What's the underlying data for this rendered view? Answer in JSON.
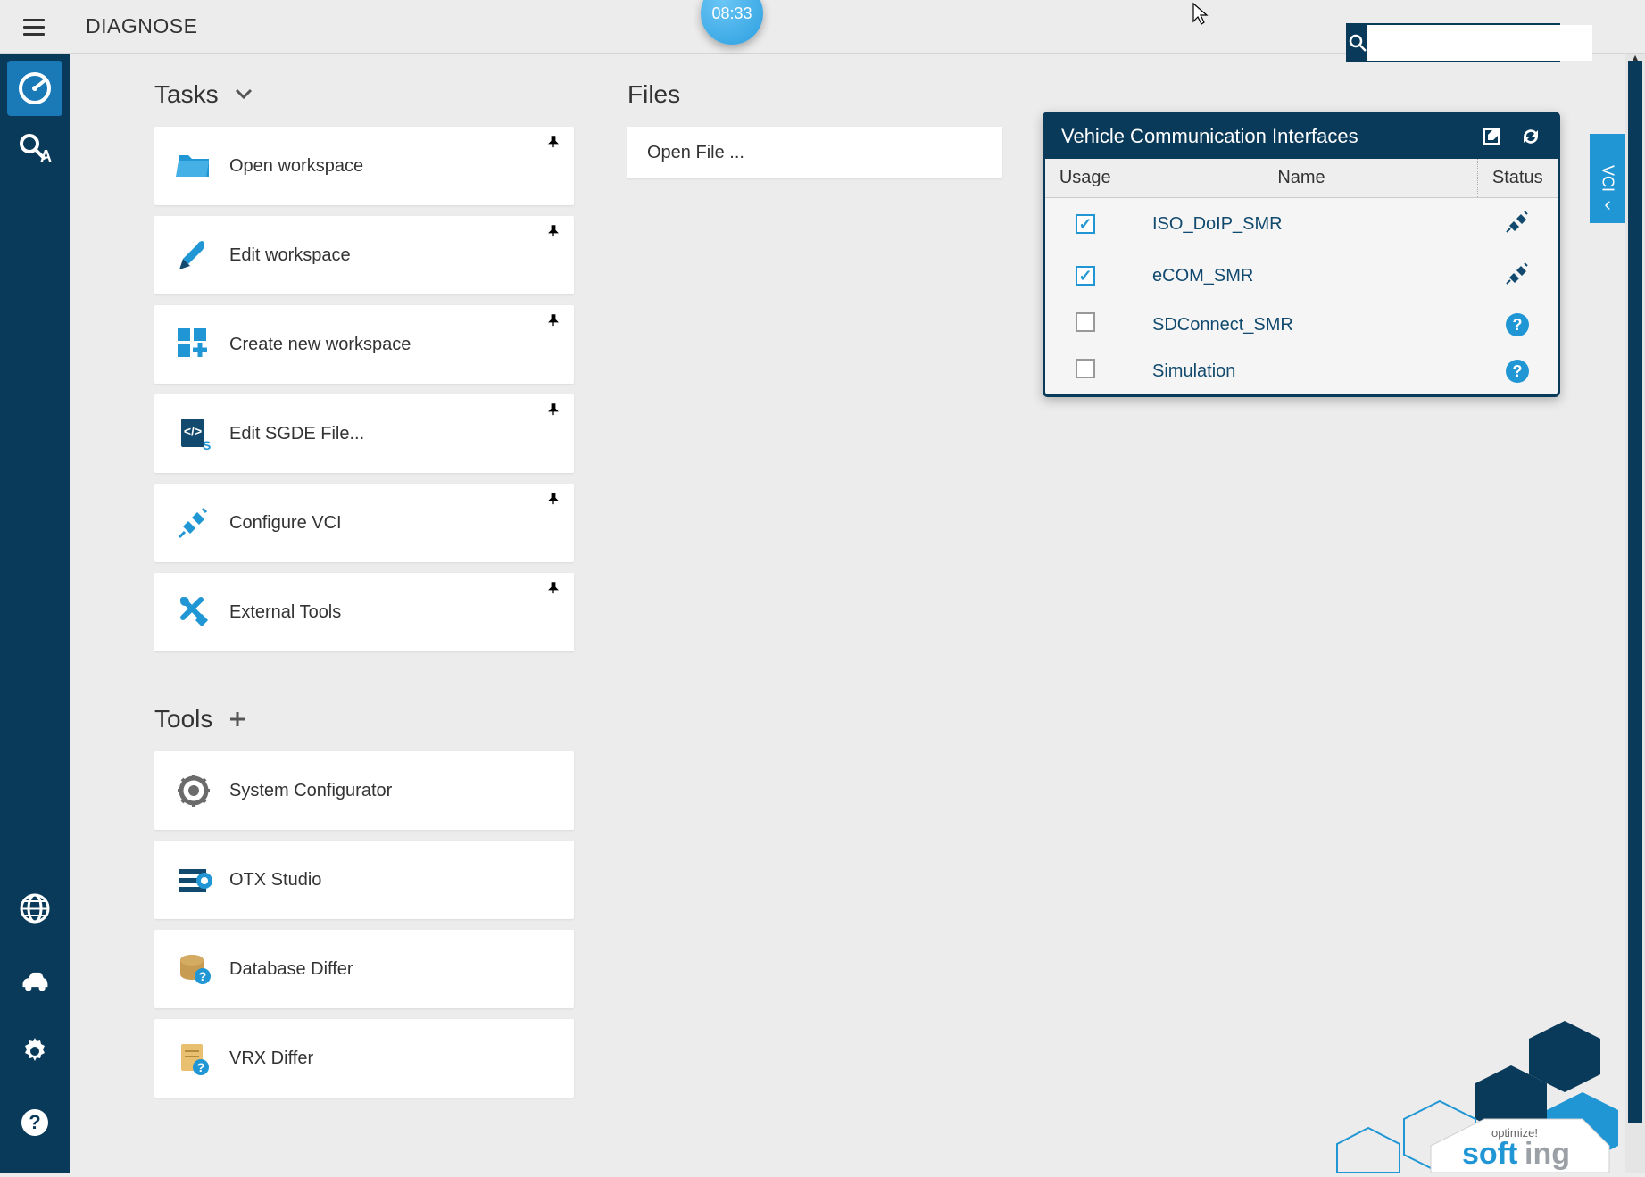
{
  "header": {
    "app_title": "DIAGNOSE",
    "time_bubble": "08:33"
  },
  "search": {
    "placeholder": ""
  },
  "left_rail": {
    "top_items": [
      "gauge",
      "inspect"
    ],
    "bottom_items": [
      "globe",
      "car",
      "gear",
      "help"
    ]
  },
  "tasks": {
    "section_label": "Tasks",
    "items": [
      {
        "label": "Open workspace",
        "icon": "folder",
        "icon_color": "#2196d4"
      },
      {
        "label": "Edit workspace",
        "icon": "brush",
        "icon_color": "#2196d4"
      },
      {
        "label": "Create new workspace",
        "icon": "grid-plus",
        "icon_color": "#2196d4"
      },
      {
        "label": "Edit SGDE File...",
        "icon": "code-file",
        "icon_color": "#114a6e"
      },
      {
        "label": "Configure VCI",
        "icon": "plug",
        "icon_color": "#2196d4"
      },
      {
        "label": "External Tools",
        "icon": "wrench-driver",
        "icon_color": "#2196d4"
      }
    ]
  },
  "tools": {
    "section_label": "Tools",
    "items": [
      {
        "label": "System Configurator",
        "icon": "cog",
        "icon_color": "#6b6b6b"
      },
      {
        "label": "OTX Studio",
        "icon": "otx",
        "icon_color": "#114a6e"
      },
      {
        "label": "Database Differ",
        "icon": "db-help",
        "icon_color": "#b58b3e"
      },
      {
        "label": "VRX Differ",
        "icon": "doc-help",
        "icon_color": "#b58b3e"
      }
    ]
  },
  "files": {
    "section_label": "Files",
    "open_file_label": "Open File ..."
  },
  "vci_tab_label": "VCI",
  "vci_panel": {
    "title": "Vehicle Communication Interfaces",
    "columns": {
      "usage": "Usage",
      "name": "Name",
      "status": "Status"
    },
    "rows": [
      {
        "usage": true,
        "name": "ISO_DoIP_SMR",
        "status": "connected"
      },
      {
        "usage": true,
        "name": "eCOM_SMR",
        "status": "connected"
      },
      {
        "usage": false,
        "name": "SDConnect_SMR",
        "status": "help"
      },
      {
        "usage": false,
        "name": "Simulation",
        "status": "help"
      }
    ]
  },
  "logo": {
    "tagline": "optimize!",
    "brand_a": "soft",
    "brand_b": "ing"
  },
  "colors": {
    "accent": "#2196d4",
    "dark": "#0a3a5a",
    "bg": "#ececec",
    "card": "#ffffff"
  }
}
